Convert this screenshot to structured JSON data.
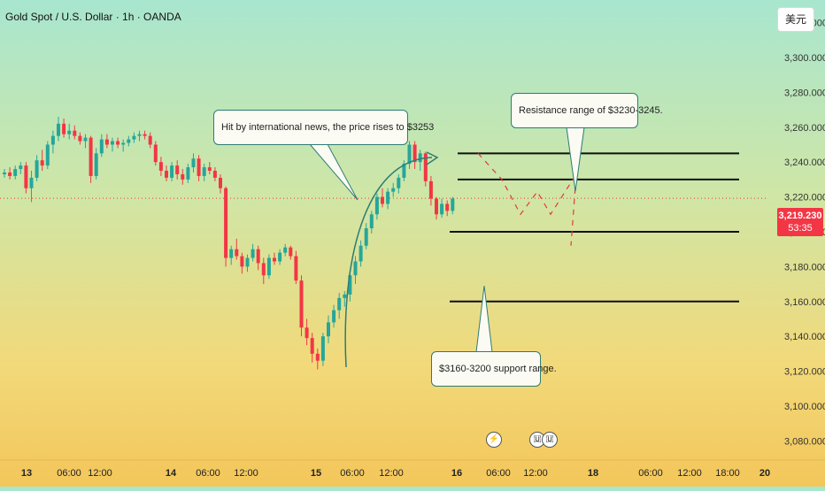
{
  "header": {
    "symbol": "Gold Spot / U.S. Dollar · 1h · OANDA",
    "currency": "美元"
  },
  "price_label": {
    "price": "3,219.230",
    "countdown": "53:35"
  },
  "callouts": {
    "news": "Hit by international news, the price rises to $3253",
    "resistance": "Resistance range of $3230-3245.",
    "support": "$3160-3200 support range."
  },
  "colors": {
    "bull": "#26a69a",
    "bear": "#f23645",
    "level_line": "#111111",
    "callout_border": "#2d7c74",
    "projection": "#e53935"
  },
  "icons": {
    "event_flash": "lightning-icon",
    "event_us_flag": "us-flag-icon"
  },
  "chart_data": {
    "type": "candlestick",
    "title": "Gold Spot / U.S. Dollar · 1h · OANDA",
    "ylim": [
      3069,
      3333
    ],
    "y_ticks": [
      "3,320.000",
      "3,300.000",
      "3,280.000",
      "3,260.000",
      "3,240.000",
      "3,220.000",
      "3,200.000",
      "3,180.000",
      "3,160.000",
      "3,140.000",
      "3,120.000",
      "3,100.000",
      "3,080.000"
    ],
    "y_tick_values": [
      3320,
      3300,
      3280,
      3260,
      3240,
      3220,
      3200,
      3180,
      3160,
      3140,
      3120,
      3100,
      3080
    ],
    "x_ticks": [
      "13",
      "06:00",
      "12:00",
      "14",
      "06:00",
      "12:00",
      "15",
      "06:00",
      "12:00",
      "16",
      "06:00",
      "12:00",
      "18",
      "06:00",
      "12:00",
      "18:00",
      "20"
    ],
    "x_tick_bold": [
      true,
      false,
      false,
      true,
      false,
      false,
      true,
      false,
      false,
      true,
      false,
      false,
      true,
      false,
      false,
      false,
      true
    ],
    "current_price": 3219.23,
    "candles": [
      [
        3233,
        3236,
        3231,
        3234
      ],
      [
        3234,
        3237,
        3230,
        3232
      ],
      [
        3232,
        3238,
        3230,
        3236
      ],
      [
        3236,
        3240,
        3233,
        3238
      ],
      [
        3238,
        3240,
        3222,
        3225
      ],
      [
        3225,
        3235,
        3217,
        3231
      ],
      [
        3231,
        3244,
        3229,
        3241
      ],
      [
        3241,
        3247,
        3235,
        3238
      ],
      [
        3238,
        3252,
        3236,
        3250
      ],
      [
        3250,
        3258,
        3245,
        3255
      ],
      [
        3255,
        3266,
        3252,
        3262
      ],
      [
        3262,
        3265,
        3254,
        3256
      ],
      [
        3256,
        3262,
        3253,
        3258
      ],
      [
        3258,
        3261,
        3253,
        3255
      ],
      [
        3255,
        3257,
        3250,
        3252
      ],
      [
        3252,
        3256,
        3248,
        3254
      ],
      [
        3254,
        3255,
        3228,
        3232
      ],
      [
        3232,
        3248,
        3230,
        3245
      ],
      [
        3245,
        3256,
        3243,
        3253
      ],
      [
        3253,
        3256,
        3248,
        3250
      ],
      [
        3250,
        3254,
        3246,
        3252
      ],
      [
        3252,
        3254,
        3248,
        3250
      ],
      [
        3250,
        3253,
        3246,
        3251
      ],
      [
        3251,
        3255,
        3249,
        3253
      ],
      [
        3253,
        3257,
        3251,
        3255
      ],
      [
        3255,
        3258,
        3252,
        3256
      ],
      [
        3256,
        3258,
        3253,
        3255
      ],
      [
        3255,
        3257,
        3248,
        3250
      ],
      [
        3250,
        3252,
        3238,
        3240
      ],
      [
        3240,
        3243,
        3232,
        3235
      ],
      [
        3235,
        3238,
        3229,
        3231
      ],
      [
        3231,
        3240,
        3229,
        3238
      ],
      [
        3238,
        3241,
        3230,
        3233
      ],
      [
        3233,
        3236,
        3227,
        3230
      ],
      [
        3230,
        3239,
        3228,
        3237
      ],
      [
        3237,
        3245,
        3234,
        3242
      ],
      [
        3242,
        3244,
        3229,
        3232
      ],
      [
        3232,
        3239,
        3229,
        3237
      ],
      [
        3237,
        3240,
        3233,
        3235
      ],
      [
        3235,
        3237,
        3229,
        3231
      ],
      [
        3231,
        3233,
        3222,
        3225
      ],
      [
        3225,
        3226,
        3180,
        3185
      ],
      [
        3185,
        3192,
        3181,
        3190
      ],
      [
        3190,
        3196,
        3184,
        3186
      ],
      [
        3186,
        3188,
        3176,
        3180
      ],
      [
        3180,
        3187,
        3177,
        3185
      ],
      [
        3185,
        3193,
        3183,
        3190
      ],
      [
        3190,
        3192,
        3178,
        3182
      ],
      [
        3182,
        3185,
        3170,
        3175
      ],
      [
        3175,
        3187,
        3173,
        3185
      ],
      [
        3185,
        3188,
        3181,
        3183
      ],
      [
        3183,
        3190,
        3181,
        3188
      ],
      [
        3188,
        3193,
        3186,
        3191
      ],
      [
        3191,
        3192,
        3184,
        3186
      ],
      [
        3186,
        3189,
        3170,
        3172
      ],
      [
        3172,
        3175,
        3140,
        3145
      ],
      [
        3145,
        3150,
        3135,
        3139
      ],
      [
        3139,
        3142,
        3125,
        3130
      ],
      [
        3130,
        3133,
        3121,
        3126
      ],
      [
        3126,
        3142,
        3123,
        3140
      ],
      [
        3140,
        3152,
        3136,
        3148
      ],
      [
        3148,
        3158,
        3145,
        3155
      ],
      [
        3155,
        3165,
        3150,
        3162
      ],
      [
        3162,
        3166,
        3157,
        3164
      ],
      [
        3164,
        3178,
        3160,
        3175
      ],
      [
        3175,
        3186,
        3170,
        3183
      ],
      [
        3183,
        3195,
        3180,
        3192
      ],
      [
        3192,
        3205,
        3190,
        3202
      ],
      [
        3202,
        3212,
        3199,
        3210
      ],
      [
        3210,
        3222,
        3207,
        3220
      ],
      [
        3220,
        3225,
        3214,
        3216
      ],
      [
        3216,
        3225,
        3213,
        3223
      ],
      [
        3223,
        3228,
        3220,
        3225
      ],
      [
        3225,
        3233,
        3222,
        3231
      ],
      [
        3231,
        3241,
        3229,
        3239
      ],
      [
        3239,
        3252,
        3236,
        3250
      ],
      [
        3250,
        3252,
        3236,
        3240
      ],
      [
        3240,
        3247,
        3235,
        3245
      ],
      [
        3245,
        3246,
        3226,
        3229
      ],
      [
        3229,
        3232,
        3215,
        3219
      ],
      [
        3219,
        3220,
        3207,
        3210
      ],
      [
        3210,
        3219,
        3208,
        3216
      ],
      [
        3216,
        3218,
        3209,
        3212
      ],
      [
        3212,
        3220,
        3210,
        3219
      ]
    ],
    "levels": [
      3245,
      3230,
      3200,
      3160
    ],
    "projection_path": [
      3245,
      3230,
      3210,
      3223,
      3210,
      3233,
      3192
    ],
    "events": [
      "lightning-icon",
      "us-flag-icon",
      "us-flag-icon"
    ]
  }
}
